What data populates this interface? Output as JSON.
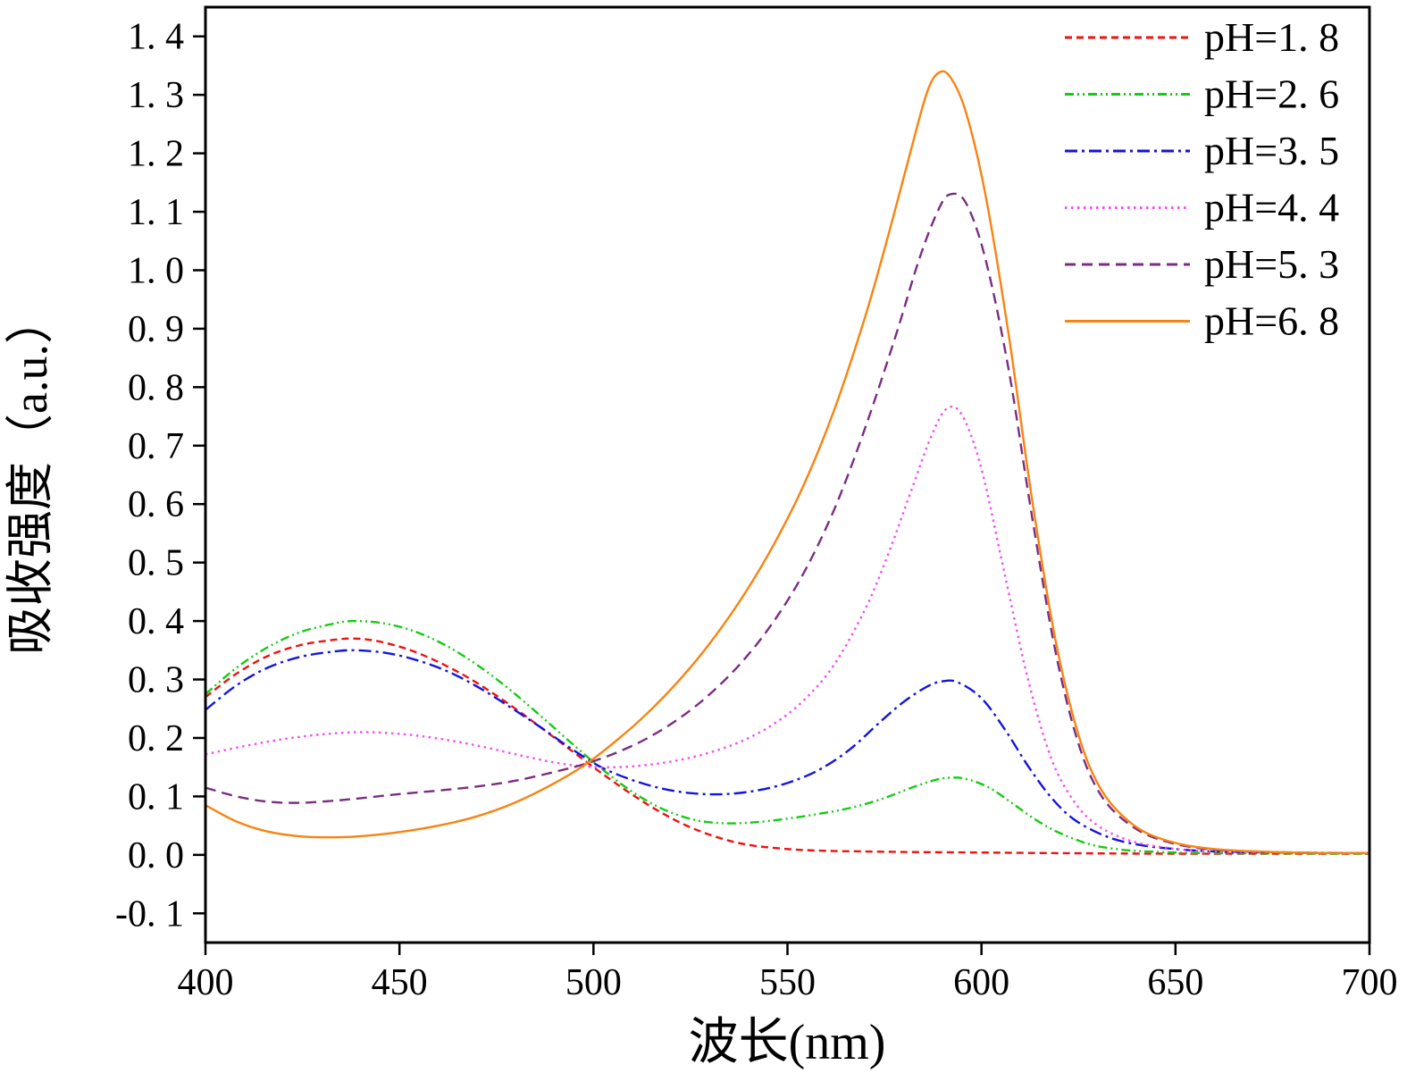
{
  "figure": {
    "background": "#ffffff",
    "axis_color": "#000000"
  },
  "chart_data": {
    "type": "line",
    "title": "",
    "xlabel": "波长(nm)",
    "ylabel": "吸收强度（a.u.）",
    "xlim": [
      400,
      700
    ],
    "ylim": [
      -0.15,
      1.45
    ],
    "grid": false,
    "legend_position": "top-right",
    "x_tick_values": [
      400,
      450,
      500,
      550,
      600,
      650,
      700
    ],
    "x_tick_labels": [
      "400",
      "450",
      "500",
      "550",
      "600",
      "650",
      "700"
    ],
    "y_tick_values": [
      -0.1,
      0.0,
      0.1,
      0.2,
      0.3,
      0.4,
      0.5,
      0.6,
      0.7,
      0.8,
      0.9,
      1.0,
      1.1,
      1.2,
      1.3,
      1.4
    ],
    "y_tick_labels": [
      "-0. 1",
      "0. 0",
      "0. 1",
      "0. 2",
      "0. 3",
      "0. 4",
      "0. 5",
      "0. 6",
      "0. 7",
      "0. 8",
      "0. 9",
      "1. 0",
      "1. 1",
      "1. 2",
      "1. 3",
      "1. 4"
    ],
    "series": [
      {
        "name": "pH=1. 8",
        "color": "#ee1111",
        "dash": "8 5",
        "points": [
          [
            400,
            0.27
          ],
          [
            408,
            0.31
          ],
          [
            416,
            0.34
          ],
          [
            424,
            0.358
          ],
          [
            432,
            0.367
          ],
          [
            438,
            0.37
          ],
          [
            444,
            0.366
          ],
          [
            452,
            0.352
          ],
          [
            460,
            0.33
          ],
          [
            468,
            0.302
          ],
          [
            476,
            0.268
          ],
          [
            484,
            0.23
          ],
          [
            492,
            0.19
          ],
          [
            500,
            0.15
          ],
          [
            508,
            0.112
          ],
          [
            516,
            0.078
          ],
          [
            524,
            0.05
          ],
          [
            532,
            0.03
          ],
          [
            540,
            0.017
          ],
          [
            550,
            0.01
          ],
          [
            560,
            0.007
          ],
          [
            580,
            0.005
          ],
          [
            600,
            0.004
          ],
          [
            620,
            0.003
          ],
          [
            650,
            0.002
          ],
          [
            700,
            0.002
          ]
        ]
      },
      {
        "name": "pH=2. 6",
        "color": "#14cc14",
        "dash": "10 4 2 4 2 4",
        "points": [
          [
            400,
            0.275
          ],
          [
            408,
            0.32
          ],
          [
            416,
            0.355
          ],
          [
            424,
            0.38
          ],
          [
            432,
            0.394
          ],
          [
            438,
            0.4
          ],
          [
            446,
            0.396
          ],
          [
            454,
            0.382
          ],
          [
            462,
            0.358
          ],
          [
            470,
            0.325
          ],
          [
            478,
            0.285
          ],
          [
            486,
            0.24
          ],
          [
            494,
            0.193
          ],
          [
            502,
            0.148
          ],
          [
            510,
            0.108
          ],
          [
            518,
            0.078
          ],
          [
            526,
            0.06
          ],
          [
            534,
            0.054
          ],
          [
            542,
            0.056
          ],
          [
            550,
            0.062
          ],
          [
            558,
            0.07
          ],
          [
            566,
            0.08
          ],
          [
            574,
            0.095
          ],
          [
            582,
            0.115
          ],
          [
            588,
            0.128
          ],
          [
            592,
            0.132
          ],
          [
            596,
            0.13
          ],
          [
            602,
            0.115
          ],
          [
            608,
            0.088
          ],
          [
            614,
            0.06
          ],
          [
            620,
            0.038
          ],
          [
            628,
            0.018
          ],
          [
            636,
            0.009
          ],
          [
            646,
            0.005
          ],
          [
            660,
            0.003
          ],
          [
            700,
            0.002
          ]
        ]
      },
      {
        "name": "pH=3. 5",
        "color": "#1414dd",
        "dash": "14 5 3 5",
        "points": [
          [
            400,
            0.248
          ],
          [
            408,
            0.29
          ],
          [
            416,
            0.32
          ],
          [
            424,
            0.338
          ],
          [
            432,
            0.347
          ],
          [
            438,
            0.35
          ],
          [
            446,
            0.346
          ],
          [
            454,
            0.334
          ],
          [
            462,
            0.315
          ],
          [
            470,
            0.288
          ],
          [
            478,
            0.255
          ],
          [
            486,
            0.22
          ],
          [
            494,
            0.183
          ],
          [
            502,
            0.15
          ],
          [
            510,
            0.128
          ],
          [
            518,
            0.113
          ],
          [
            526,
            0.105
          ],
          [
            534,
            0.104
          ],
          [
            542,
            0.11
          ],
          [
            550,
            0.123
          ],
          [
            558,
            0.145
          ],
          [
            566,
            0.18
          ],
          [
            574,
            0.228
          ],
          [
            580,
            0.262
          ],
          [
            586,
            0.288
          ],
          [
            590,
            0.297
          ],
          [
            594,
            0.295
          ],
          [
            600,
            0.268
          ],
          [
            606,
            0.215
          ],
          [
            612,
            0.152
          ],
          [
            618,
            0.098
          ],
          [
            624,
            0.06
          ],
          [
            632,
            0.032
          ],
          [
            640,
            0.018
          ],
          [
            650,
            0.01
          ],
          [
            665,
            0.005
          ],
          [
            700,
            0.003
          ]
        ]
      },
      {
        "name": "pH=4. 4",
        "color": "#f44df4",
        "dash": "2.5 4.5",
        "points": [
          [
            400,
            0.172
          ],
          [
            410,
            0.186
          ],
          [
            420,
            0.198
          ],
          [
            430,
            0.206
          ],
          [
            440,
            0.21
          ],
          [
            450,
            0.207
          ],
          [
            460,
            0.199
          ],
          [
            470,
            0.187
          ],
          [
            480,
            0.172
          ],
          [
            490,
            0.158
          ],
          [
            498,
            0.151
          ],
          [
            506,
            0.15
          ],
          [
            514,
            0.154
          ],
          [
            522,
            0.162
          ],
          [
            530,
            0.175
          ],
          [
            538,
            0.194
          ],
          [
            546,
            0.222
          ],
          [
            554,
            0.263
          ],
          [
            562,
            0.325
          ],
          [
            570,
            0.42
          ],
          [
            576,
            0.515
          ],
          [
            582,
            0.625
          ],
          [
            587,
            0.715
          ],
          [
            591,
            0.763
          ],
          [
            595,
            0.752
          ],
          [
            600,
            0.66
          ],
          [
            606,
            0.48
          ],
          [
            612,
            0.3
          ],
          [
            618,
            0.165
          ],
          [
            624,
            0.09
          ],
          [
            630,
            0.05
          ],
          [
            638,
            0.025
          ],
          [
            648,
            0.012
          ],
          [
            660,
            0.006
          ],
          [
            700,
            0.003
          ]
        ]
      },
      {
        "name": "pH=5. 3",
        "color": "#7b2d82",
        "dash": "12 7",
        "points": [
          [
            400,
            0.115
          ],
          [
            408,
            0.1
          ],
          [
            416,
            0.091
          ],
          [
            424,
            0.089
          ],
          [
            432,
            0.092
          ],
          [
            440,
            0.097
          ],
          [
            450,
            0.104
          ],
          [
            460,
            0.11
          ],
          [
            470,
            0.117
          ],
          [
            480,
            0.127
          ],
          [
            490,
            0.142
          ],
          [
            498,
            0.156
          ],
          [
            506,
            0.175
          ],
          [
            514,
            0.2
          ],
          [
            522,
            0.233
          ],
          [
            530,
            0.275
          ],
          [
            538,
            0.328
          ],
          [
            546,
            0.395
          ],
          [
            554,
            0.48
          ],
          [
            562,
            0.59
          ],
          [
            570,
            0.73
          ],
          [
            578,
            0.89
          ],
          [
            584,
            1.02
          ],
          [
            589,
            1.105
          ],
          [
            592,
            1.13
          ],
          [
            596,
            1.115
          ],
          [
            601,
            1.02
          ],
          [
            607,
            0.83
          ],
          [
            613,
            0.58
          ],
          [
            619,
            0.35
          ],
          [
            625,
            0.19
          ],
          [
            631,
            0.1
          ],
          [
            639,
            0.048
          ],
          [
            648,
            0.022
          ],
          [
            660,
            0.009
          ],
          [
            680,
            0.004
          ],
          [
            700,
            0.003
          ]
        ]
      },
      {
        "name": "pH=6. 8",
        "color": "#f98310",
        "dash": "",
        "points": [
          [
            400,
            0.085
          ],
          [
            408,
            0.057
          ],
          [
            416,
            0.04
          ],
          [
            424,
            0.032
          ],
          [
            432,
            0.03
          ],
          [
            440,
            0.032
          ],
          [
            450,
            0.039
          ],
          [
            460,
            0.05
          ],
          [
            470,
            0.066
          ],
          [
            480,
            0.09
          ],
          [
            490,
            0.123
          ],
          [
            498,
            0.155
          ],
          [
            506,
            0.196
          ],
          [
            514,
            0.243
          ],
          [
            522,
            0.298
          ],
          [
            530,
            0.362
          ],
          [
            538,
            0.437
          ],
          [
            546,
            0.525
          ],
          [
            554,
            0.63
          ],
          [
            562,
            0.76
          ],
          [
            570,
            0.92
          ],
          [
            576,
            1.06
          ],
          [
            582,
            1.21
          ],
          [
            586,
            1.305
          ],
          [
            589,
            1.338
          ],
          [
            592,
            1.33
          ],
          [
            596,
            1.27
          ],
          [
            601,
            1.13
          ],
          [
            607,
            0.89
          ],
          [
            613,
            0.61
          ],
          [
            619,
            0.37
          ],
          [
            625,
            0.205
          ],
          [
            631,
            0.11
          ],
          [
            639,
            0.052
          ],
          [
            648,
            0.024
          ],
          [
            660,
            0.01
          ],
          [
            680,
            0.004
          ],
          [
            700,
            0.003
          ]
        ]
      }
    ]
  }
}
